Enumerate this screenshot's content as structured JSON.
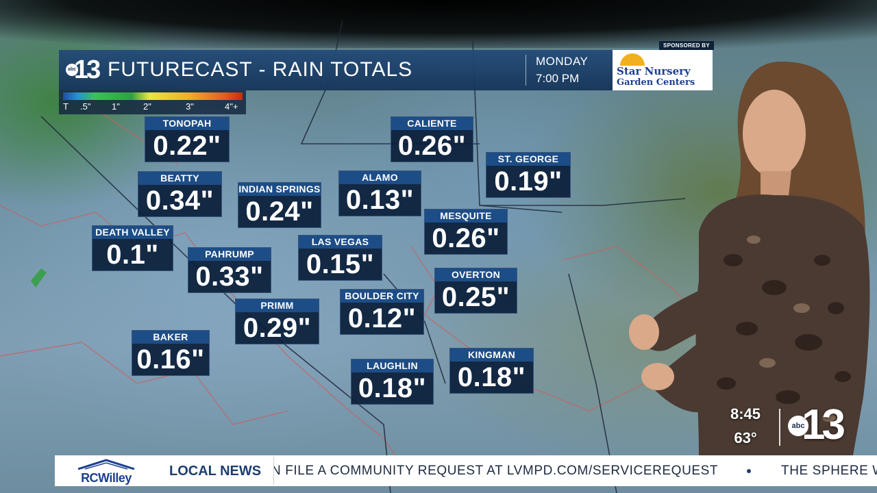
{
  "header": {
    "logo_abc": "abc",
    "logo_number": "13",
    "title": "FUTURECAST - RAIN TOTALS",
    "day": "MONDAY",
    "time": "7:00 PM"
  },
  "sponsor": {
    "sponsored_by": "SPONSORED BY",
    "name_line1": "Star Nursery",
    "name_line2": "Garden Centers",
    "brand_color": "#1b3f8f"
  },
  "legend": {
    "labels": [
      "T",
      ".5\"",
      "1\"",
      "2\"",
      "3\"",
      "4\"+"
    ]
  },
  "cities": [
    {
      "name": "TONOPAH",
      "value": "0.22\""
    },
    {
      "name": "CALIENTE",
      "value": "0.26\""
    },
    {
      "name": "ST. GEORGE",
      "value": "0.19\""
    },
    {
      "name": "BEATTY",
      "value": "0.34\""
    },
    {
      "name": "INDIAN SPRINGS",
      "value": "0.24\""
    },
    {
      "name": "ALAMO",
      "value": "0.13\""
    },
    {
      "name": "MESQUITE",
      "value": "0.26\""
    },
    {
      "name": "DEATH VALLEY",
      "value": "0.1\""
    },
    {
      "name": "PAHRUMP",
      "value": "0.33\""
    },
    {
      "name": "LAS VEGAS",
      "value": "0.15\""
    },
    {
      "name": "OVERTON",
      "value": "0.25\""
    },
    {
      "name": "PRIMM",
      "value": "0.29\""
    },
    {
      "name": "BOULDER CITY",
      "value": "0.12\""
    },
    {
      "name": "BAKER",
      "value": "0.16\""
    },
    {
      "name": "KINGMAN",
      "value": "0.18\""
    },
    {
      "name": "LAUGHLIN",
      "value": "0.18\""
    }
  ],
  "status": {
    "clock": "8:45",
    "temperature": "63°",
    "logo_abc": "abc",
    "logo_number": "13"
  },
  "ticker": {
    "advertiser": "RCWilley",
    "section": "LOCAL NEWS",
    "text": "N FILE A COMMUNITY REQUEST AT LVMPD.COM/SERVICEREQUEST",
    "next_text": "THE SPHERE W"
  }
}
